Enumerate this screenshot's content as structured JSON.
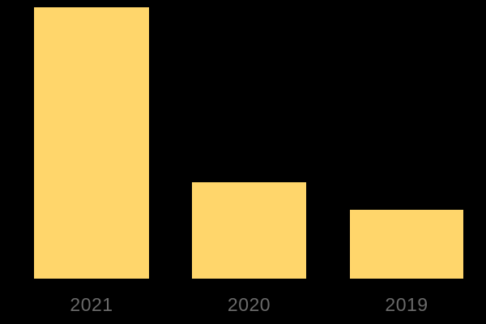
{
  "chart_data": {
    "type": "bar",
    "categories": [
      "2021",
      "2020",
      "2019"
    ],
    "values": [
      100,
      35.5,
      25.4
    ],
    "title": "",
    "xlabel": "",
    "ylabel": "",
    "ylim": [
      0,
      100
    ],
    "grid": false,
    "legend": false,
    "axes_visible": false,
    "bar_color": "#FFD66B",
    "label_color": "#6a6a6a",
    "background_color": "#000000"
  },
  "layout_note_values": {
    "comment_not_rendered": ""
  }
}
